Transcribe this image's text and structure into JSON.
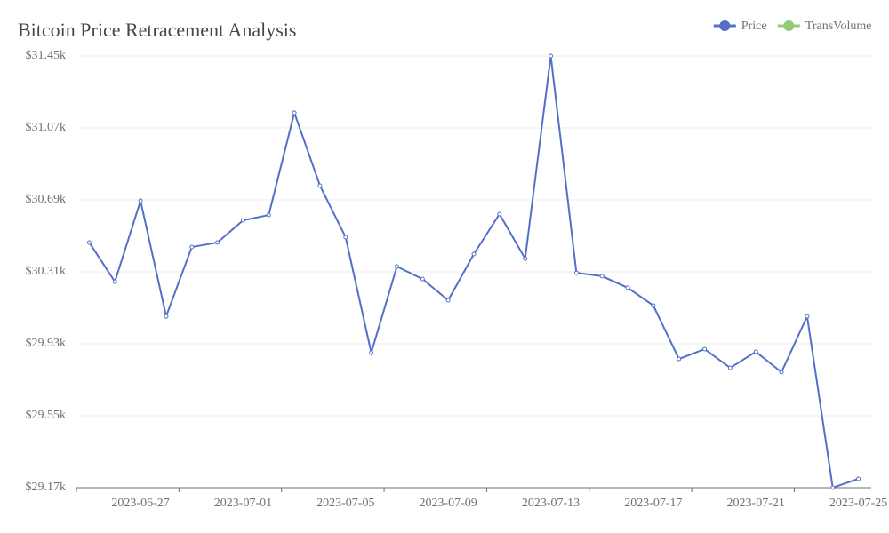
{
  "chart_data": {
    "type": "line",
    "title": "Bitcoin Price Retracement Analysis",
    "categories": [
      null,
      null,
      "2023-06-27",
      null,
      null,
      null,
      "2023-07-01",
      null,
      null,
      null,
      "2023-07-05",
      null,
      null,
      null,
      "2023-07-09",
      null,
      null,
      null,
      "2023-07-13",
      null,
      null,
      null,
      "2023-07-17",
      null,
      null,
      null,
      "2023-07-21",
      null,
      null,
      null,
      "2023-07-25"
    ],
    "series": [
      {
        "name": "Price",
        "color": "#5470c6",
        "values": [
          30465,
          30258,
          30685,
          30075,
          30441,
          30465,
          30582,
          30610,
          31150,
          30765,
          30493,
          29883,
          30338,
          30272,
          30160,
          30404,
          30615,
          30380,
          31450,
          30305,
          30287,
          30226,
          30132,
          29850,
          29902,
          29803,
          29888,
          29780,
          30075,
          29170,
          29217
        ]
      },
      {
        "name": "TransVolume",
        "color": "#91cc75",
        "values": [
          null,
          null,
          null,
          null,
          null,
          null,
          null,
          null,
          null,
          null,
          null,
          null,
          null,
          null,
          null,
          null,
          null,
          null,
          null,
          null,
          null,
          null,
          null,
          null,
          null,
          null,
          null,
          null,
          null,
          null,
          null
        ]
      }
    ],
    "ylim": [
      29170,
      31450
    ],
    "yticks": [
      {
        "value": 29170,
        "label": "$29.17k"
      },
      {
        "value": 29550,
        "label": "$29.55k"
      },
      {
        "value": 29930,
        "label": "$29.93k"
      },
      {
        "value": 30310,
        "label": "$30.31k"
      },
      {
        "value": 30690,
        "label": "$30.69k"
      },
      {
        "value": 31070,
        "label": "$31.07k"
      },
      {
        "value": 31450,
        "label": "$31.45k"
      }
    ],
    "grid": true,
    "legend": "top-right"
  }
}
